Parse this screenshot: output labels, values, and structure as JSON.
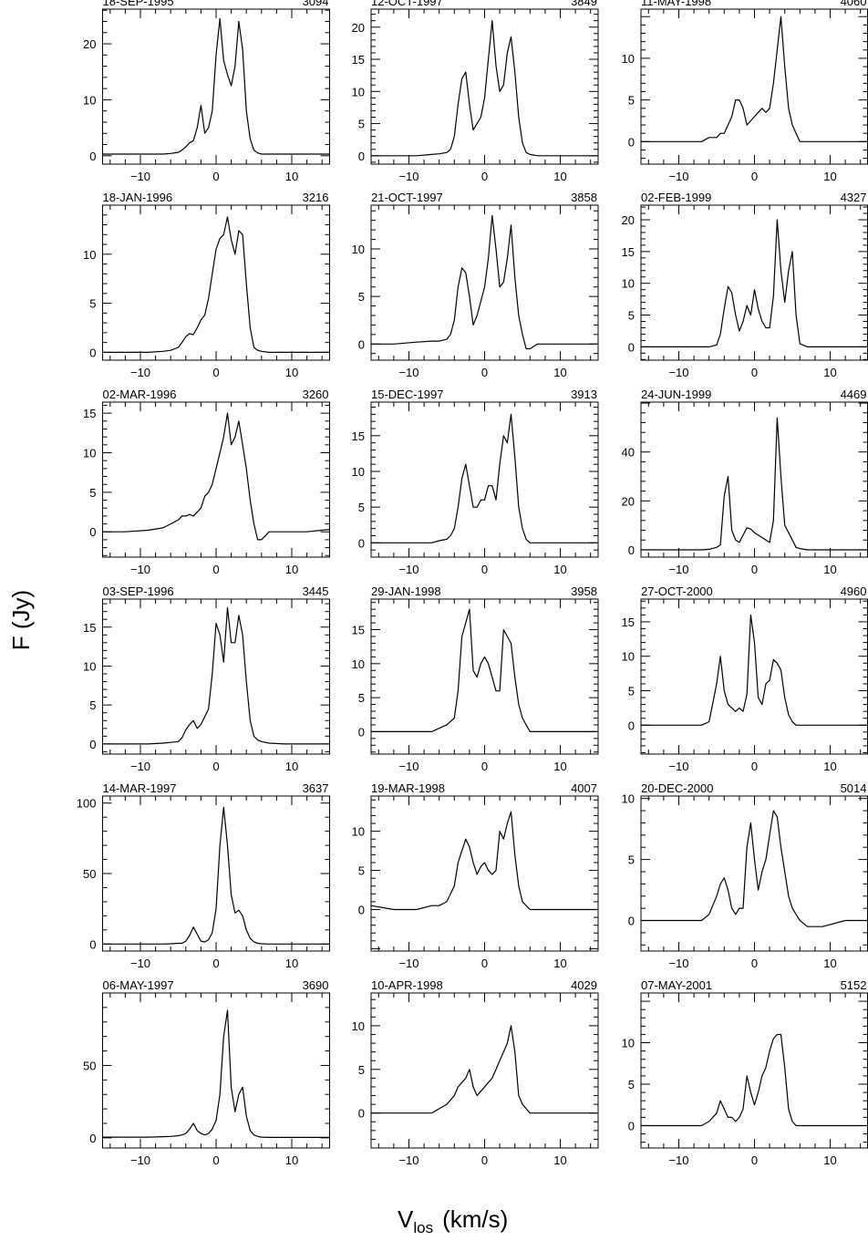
{
  "figure": {
    "ylabel": "F (Jy)",
    "xlabel_main": "V",
    "xlabel_sub": "los",
    "xlabel_unit": "(km/s)",
    "line_color": "#000000"
  },
  "chart_common": {
    "type": "line",
    "xlim": [
      -15,
      15
    ],
    "xticks": [
      -10,
      0,
      10
    ],
    "x": [
      -15,
      -12,
      -9,
      -7,
      -6,
      -5,
      -4.5,
      -4,
      -3.5,
      -3,
      -2.5,
      -2,
      -1.5,
      -1,
      -0.5,
      0,
      0.5,
      1,
      1.5,
      2,
      2.5,
      3,
      3.5,
      4,
      4.5,
      5,
      5.5,
      6,
      7,
      9,
      12,
      15
    ]
  },
  "chart_data": [
    {
      "type": "line",
      "title": "18-SEP-1995",
      "label_right": "3094",
      "ylim": [
        -1.5,
        26.2
      ],
      "yticks": [
        0,
        10,
        20
      ],
      "y": [
        0.3,
        0.3,
        0.3,
        0.3,
        0.4,
        0.6,
        1,
        1.6,
        2.3,
        2.7,
        5,
        9,
        4,
        5,
        8,
        18,
        24.5,
        17,
        14.5,
        12.5,
        16,
        24,
        19,
        8,
        3,
        1,
        0.5,
        0.3,
        0.3,
        0.3,
        0.3,
        0.3
      ]
    },
    {
      "type": "line",
      "title": "18-JAN-1996",
      "label_right": "3216",
      "ylim": [
        -0.8,
        15
      ],
      "yticks": [
        0,
        5,
        10
      ],
      "y": [
        0,
        0,
        0,
        0.1,
        0.2,
        0.5,
        1,
        1.6,
        1.9,
        1.8,
        2.5,
        3.3,
        3.8,
        5.5,
        8,
        10.5,
        11.6,
        12,
        13.8,
        11.5,
        10,
        12.4,
        12,
        7,
        2.5,
        0.5,
        0.2,
        0.1,
        0,
        0,
        0,
        0
      ]
    },
    {
      "type": "line",
      "title": "02-MAR-1996",
      "label_right": "3260",
      "ylim": [
        -3.2,
        16.4
      ],
      "yticks": [
        0,
        5,
        10,
        15
      ],
      "y": [
        0,
        0,
        0.2,
        0.5,
        1,
        1.5,
        2,
        2,
        2.2,
        2,
        2.5,
        3,
        4.5,
        5,
        6,
        8,
        10,
        12,
        15,
        11,
        12,
        14,
        11,
        8,
        4,
        1,
        -1,
        -1,
        0,
        0,
        0,
        0.3
      ]
    },
    {
      "type": "line",
      "title": "03-SEP-1996",
      "label_right": "3445",
      "ylim": [
        -1.3,
        18.6
      ],
      "yticks": [
        0,
        5,
        10,
        15
      ],
      "y": [
        0,
        0,
        0,
        0.1,
        0.2,
        0.3,
        0.8,
        1.8,
        2.5,
        3,
        2,
        2.5,
        3.5,
        4.5,
        9,
        15.5,
        14,
        10.5,
        17.5,
        13,
        13,
        16.5,
        14,
        8,
        3,
        1,
        0.5,
        0.3,
        0.1,
        0,
        0,
        0
      ]
    },
    {
      "type": "line",
      "title": "14-MAR-1997",
      "label_right": "3637",
      "ylim": [
        -5,
        105
      ],
      "yticks": [
        0,
        50,
        100
      ],
      "y": [
        0,
        0,
        0,
        0,
        0.2,
        0.5,
        0.5,
        2,
        6,
        12,
        7,
        2,
        1.5,
        3,
        8,
        25,
        70,
        97,
        70,
        35,
        22,
        24,
        20,
        10,
        4,
        1.5,
        0.5,
        0.2,
        0,
        0,
        0,
        0
      ]
    },
    {
      "type": "line",
      "title": "06-MAY-1997",
      "label_right": "3690",
      "ylim": [
        -7,
        100
      ],
      "yticks": [
        0,
        50
      ],
      "y": [
        0.5,
        0.5,
        0.5,
        0.8,
        1,
        1.5,
        2,
        3,
        6,
        10,
        5,
        3,
        2,
        3,
        6,
        12,
        30,
        70,
        88,
        35,
        18,
        30,
        35,
        15,
        5,
        2,
        1,
        0.5,
        0.3,
        0.3,
        0.3,
        0.3
      ]
    },
    {
      "type": "line",
      "title": "12-OCT-1997",
      "label_right": "3849",
      "ylim": [
        -1.3,
        22.8
      ],
      "yticks": [
        0,
        5,
        10,
        15,
        20
      ],
      "y": [
        0,
        0,
        0,
        0.2,
        0.3,
        0.5,
        1,
        3,
        8,
        12,
        13,
        8,
        4,
        5,
        6,
        9,
        15,
        21,
        14,
        10,
        11,
        16,
        18.5,
        13,
        6,
        2,
        0.5,
        0.2,
        0,
        0,
        0,
        0
      ]
    },
    {
      "type": "line",
      "title": "21-OCT-1997",
      "label_right": "3858",
      "ylim": [
        -1.7,
        14.6
      ],
      "yticks": [
        0,
        5,
        10
      ],
      "y": [
        0,
        0,
        0.2,
        0.3,
        0.3,
        0.5,
        1,
        2.5,
        6,
        8,
        7.5,
        5,
        2,
        3,
        4.5,
        6,
        9,
        13.5,
        10,
        6,
        6.5,
        9,
        12.5,
        7,
        3,
        1,
        -0.5,
        -0.5,
        0,
        0,
        0,
        0
      ]
    },
    {
      "type": "line",
      "title": "15-DEC-1997",
      "label_right": "3913",
      "ylim": [
        -2,
        19.7
      ],
      "yticks": [
        0,
        5,
        10,
        15
      ],
      "y": [
        0,
        0,
        0,
        0,
        0.3,
        0.5,
        1,
        2,
        5,
        9,
        11,
        8,
        5,
        5,
        6,
        6,
        8,
        8,
        6,
        11,
        15,
        14,
        18,
        12,
        5,
        2,
        0.5,
        0,
        0,
        0,
        0,
        0
      ]
    },
    {
      "type": "line",
      "title": "29-JAN-1998",
      "label_right": "3958",
      "ylim": [
        -3.3,
        19.5
      ],
      "yticks": [
        0,
        5,
        10,
        15
      ],
      "y": [
        0,
        0,
        0,
        0,
        0.5,
        1,
        1.5,
        2,
        6,
        14,
        16,
        18,
        9,
        8,
        10,
        11,
        10,
        8,
        6,
        6,
        15,
        14,
        13,
        8,
        4,
        2,
        1,
        0,
        0,
        0,
        0,
        0
      ]
    },
    {
      "type": "line",
      "title": "19-MAR-1998",
      "label_right": "4007",
      "ylim": [
        -5.3,
        14.5
      ],
      "yticks": [
        0,
        5,
        10
      ],
      "y": [
        0.5,
        0,
        0,
        0.5,
        0.5,
        1,
        2,
        3,
        6,
        7.5,
        9,
        8,
        6,
        4.5,
        5.5,
        6,
        5,
        4.5,
        5,
        10,
        9,
        11,
        12.5,
        7,
        3,
        1,
        0.5,
        0,
        0,
        0,
        0,
        0
      ]
    },
    {
      "type": "line",
      "title": "10-APR-1998",
      "label_right": "4029",
      "ylim": [
        -4,
        13.75
      ],
      "yticks": [
        0,
        5,
        10
      ],
      "y": [
        0,
        0,
        0,
        0,
        0.5,
        1,
        1.5,
        2,
        3,
        3.5,
        4,
        5,
        3,
        2,
        2.5,
        3,
        3.5,
        4,
        5,
        6,
        7,
        8,
        10,
        7,
        2,
        1,
        0.5,
        0,
        0,
        0,
        0,
        0
      ]
    },
    {
      "type": "line",
      "title": "11-MAY-1998",
      "label_right": "4060",
      "ylim": [
        -2.7,
        15.9
      ],
      "yticks": [
        0,
        5,
        10
      ],
      "y": [
        0,
        0,
        0,
        0,
        0.5,
        0.5,
        1,
        1,
        2,
        3,
        5,
        5,
        4,
        2,
        2.5,
        3,
        3.5,
        4,
        3.5,
        4,
        7,
        11,
        15,
        9,
        4,
        2,
        1,
        0,
        0,
        0,
        0,
        0
      ]
    },
    {
      "type": "line",
      "title": "02-FEB-1999",
      "label_right": "4327",
      "ylim": [
        -2.1,
        22.3
      ],
      "yticks": [
        0,
        5,
        10,
        15,
        20
      ],
      "y": [
        0,
        0,
        0,
        0,
        0,
        0.3,
        2,
        6,
        9.5,
        8.5,
        5,
        2.5,
        4,
        6.5,
        5,
        9,
        6,
        4,
        3,
        3,
        8,
        20,
        12,
        7,
        12,
        15,
        5,
        0.5,
        0,
        0,
        0,
        0
      ]
    },
    {
      "type": "line",
      "title": "24-JUN-1999",
      "label_right": "4469",
      "ylim": [
        -3,
        60.4
      ],
      "yticks": [
        0,
        20,
        40
      ],
      "y": [
        0,
        0,
        0,
        0,
        0.2,
        1,
        2,
        22,
        30,
        8,
        4,
        3,
        6,
        9,
        8.5,
        7,
        6,
        5,
        4,
        3,
        12,
        54,
        30,
        10,
        7,
        4,
        1,
        0.5,
        0,
        0,
        0,
        0
      ]
    },
    {
      "type": "line",
      "title": "27-OCT-2000",
      "label_right": "4960",
      "ylim": [
        -4.2,
        18.3
      ],
      "yticks": [
        0,
        5,
        10,
        15
      ],
      "y": [
        0,
        0,
        0,
        0,
        0.5,
        6,
        10,
        5,
        3,
        2.5,
        2,
        2.5,
        2,
        4.5,
        16,
        12,
        4,
        3,
        6,
        6.5,
        9.5,
        9,
        8,
        4,
        1.5,
        0.5,
        0,
        0,
        0,
        0,
        0,
        0
      ]
    },
    {
      "type": "line",
      "title": "20-DEC-2000",
      "label_right": "5014",
      "ylim": [
        -2.5,
        10.2
      ],
      "yticks": [
        0,
        5,
        10
      ],
      "y": [
        0,
        0,
        0,
        0,
        0.5,
        2,
        3,
        3.5,
        2.5,
        1,
        0.5,
        1,
        1,
        6,
        8,
        5,
        2.5,
        4,
        5,
        7,
        9,
        8.5,
        6,
        4,
        2,
        1,
        0.5,
        0,
        -0.5,
        -0.5,
        0,
        0
      ]
    },
    {
      "type": "line",
      "title": "07-MAY-2001",
      "label_right": "5152",
      "ylim": [
        -2.7,
        16
      ],
      "yticks": [
        0,
        5,
        10
      ],
      "y": [
        0,
        0,
        0,
        0,
        0.5,
        1.5,
        3,
        2,
        1,
        1,
        0.5,
        1,
        2,
        6,
        4,
        2.5,
        4,
        6,
        7,
        9,
        10.5,
        11,
        11,
        7,
        2,
        0.5,
        0,
        0,
        0,
        0,
        0,
        0
      ]
    }
  ]
}
